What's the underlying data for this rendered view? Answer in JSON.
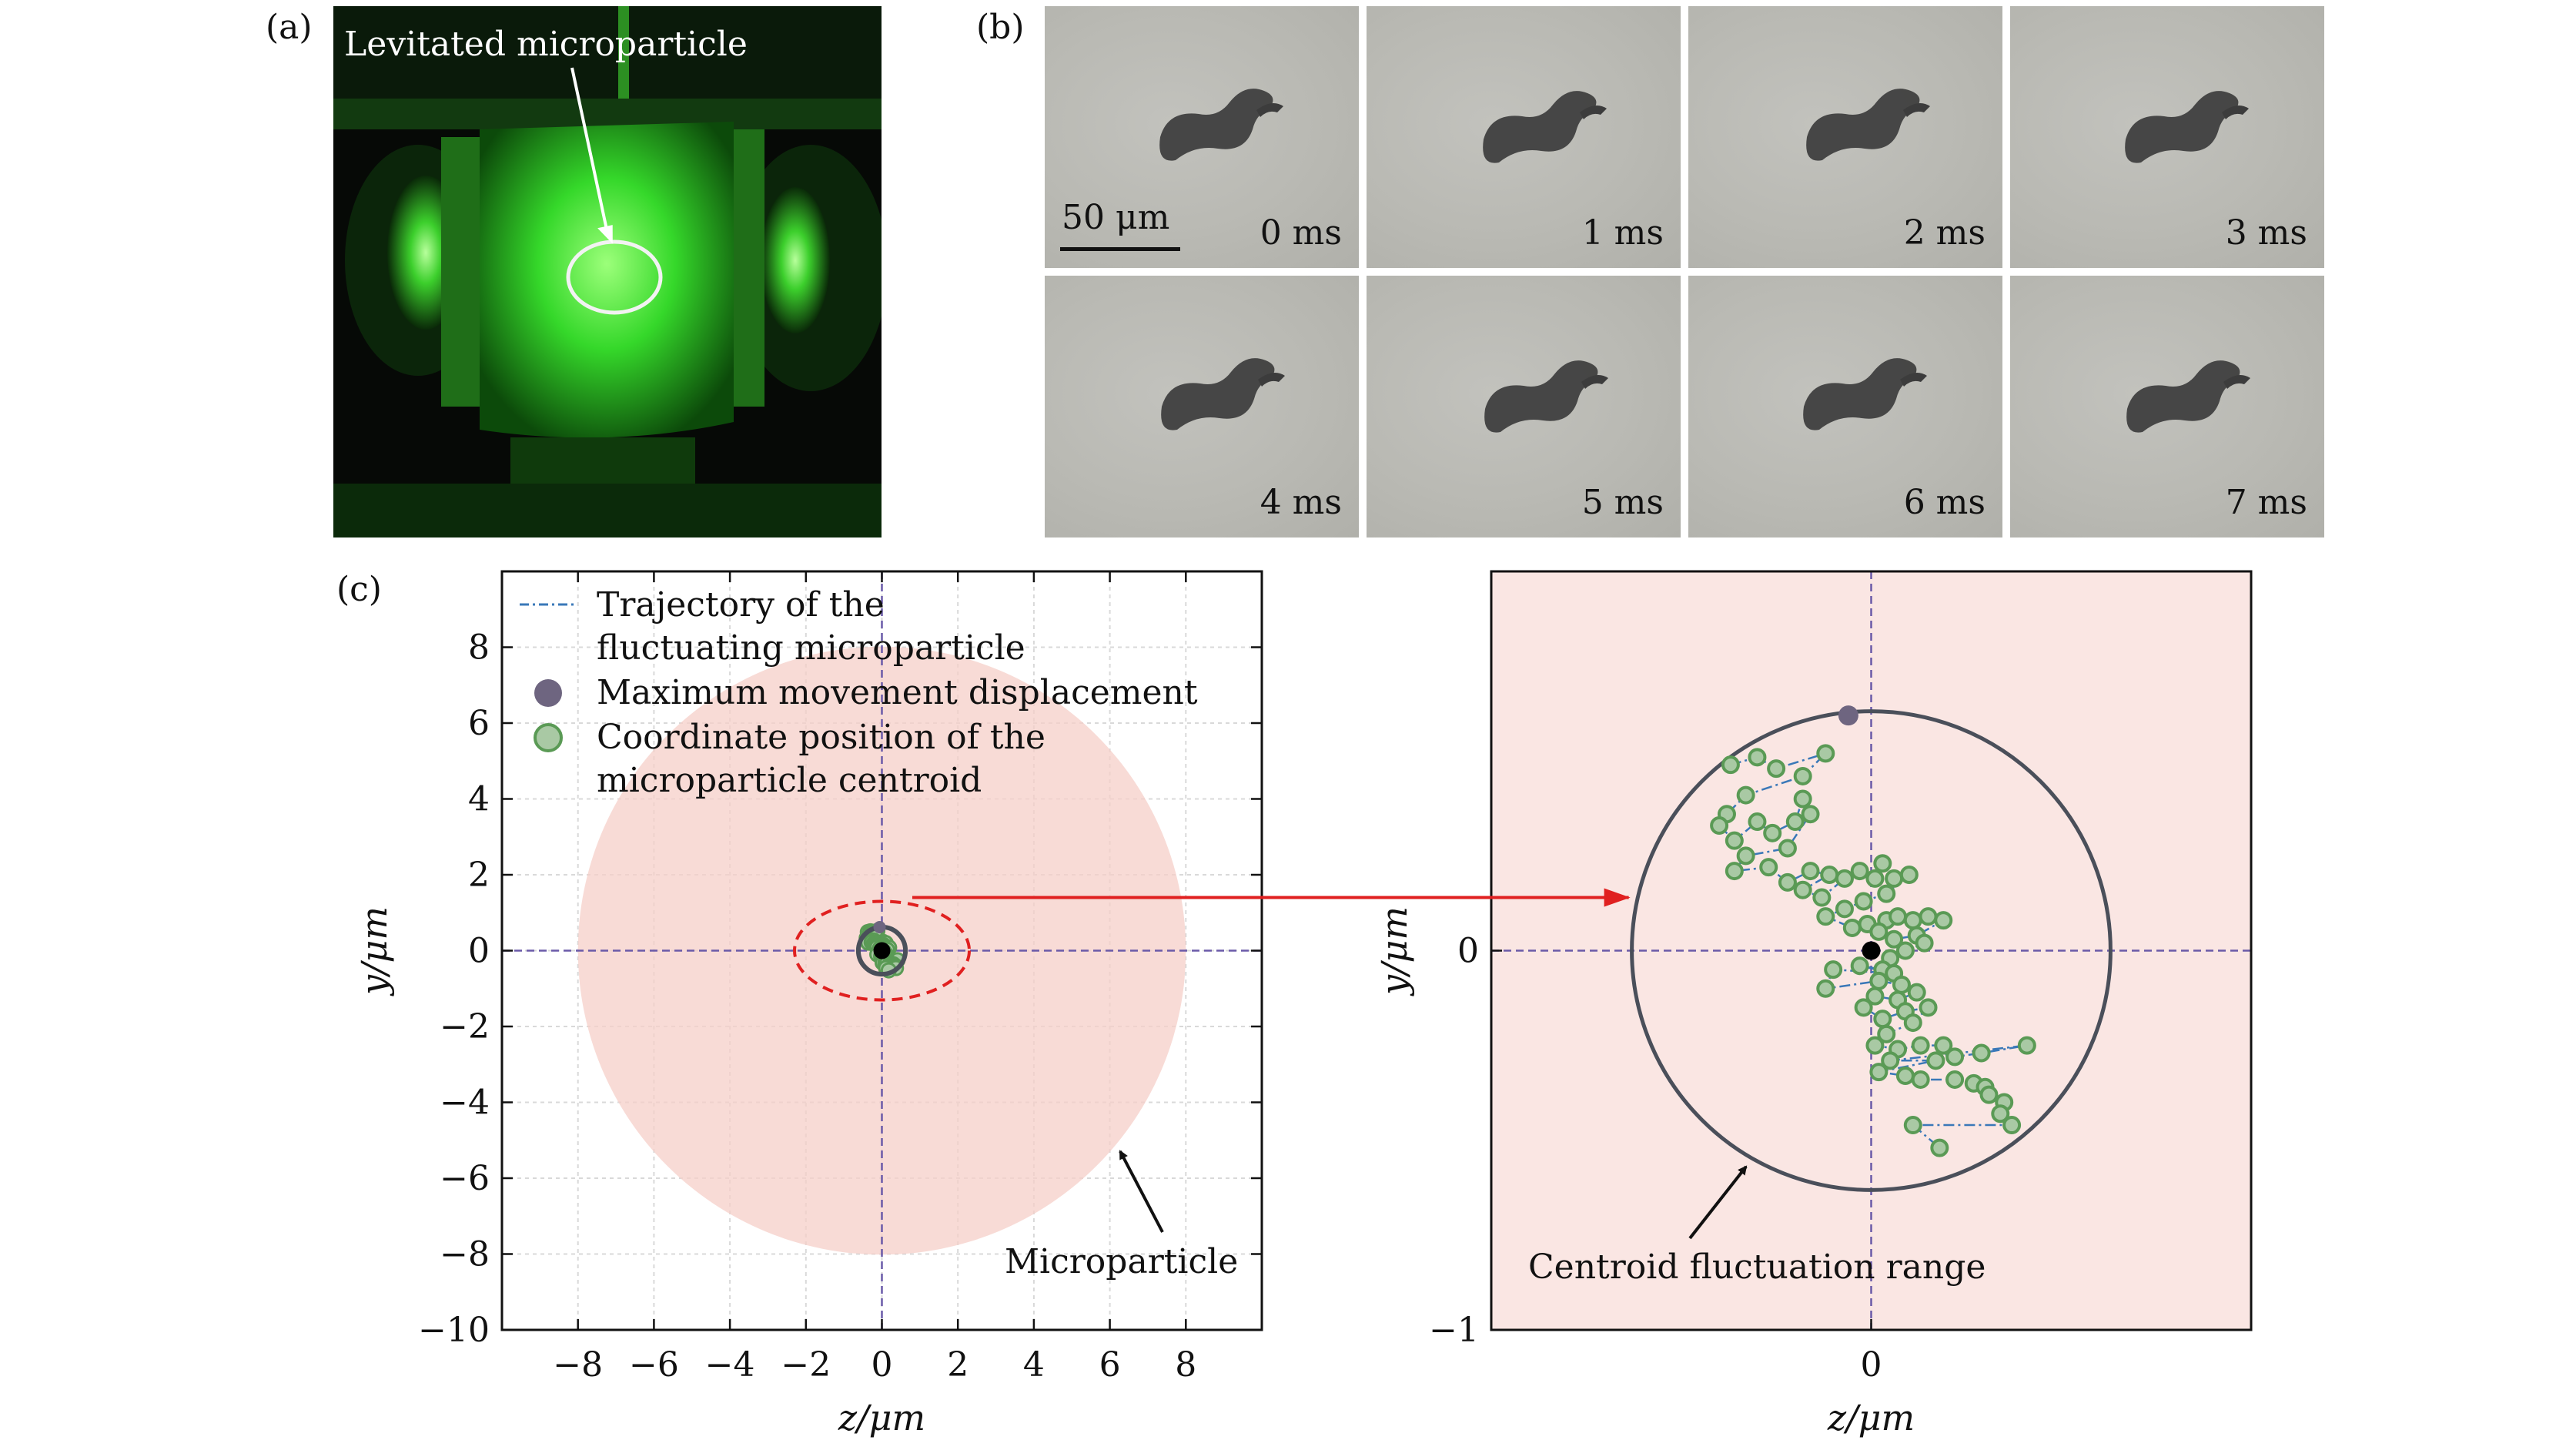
{
  "panel_labels": {
    "a": "(a)",
    "b": "(b)",
    "c": "(c)"
  },
  "panel_a": {
    "annotation": "Levitated microparticle"
  },
  "panel_b": {
    "scale_bar_label": "50 μm",
    "frames": [
      "0 ms",
      "1 ms",
      "2 ms",
      "3 ms",
      "4 ms",
      "5 ms",
      "6 ms",
      "7 ms"
    ]
  },
  "colors": {
    "particle_fill": "#f6cfc8",
    "zoom_background": "#fae6e3",
    "trajectory": "#3a78b8",
    "centroid_fill": "#a9c9a4",
    "centroid_edge": "#5a9a55",
    "max_point": "#6e6580",
    "range_circle": "#4a4f5a",
    "crosshair": "#6a5aa8",
    "zoom_ellipse": "#e02020",
    "arrow_red": "#e02020"
  },
  "legend": {
    "trajectory_line1": "Trajectory of the",
    "trajectory_line2": "fluctuating microparticle",
    "max_label": "Maximum movement displacement",
    "coord_line1": "Coordinate position of the",
    "coord_line2": "microparticle centroid"
  },
  "annotations": {
    "microparticle": "Microparticle",
    "range": "Centroid fluctuation range"
  },
  "chart_data": [
    {
      "type": "scatter",
      "xlabel": "z/μm",
      "ylabel": "y/μm",
      "xlim": [
        -10,
        10
      ],
      "ylim": [
        -10,
        10
      ],
      "xticks": [
        -8,
        -6,
        -4,
        -2,
        0,
        2,
        4,
        6,
        8
      ],
      "xtick_labels": [
        "−8",
        "−6",
        "−4",
        "−2",
        "0",
        "2",
        "4",
        "6",
        "8"
      ],
      "yticks": [
        -10,
        -8,
        -6,
        -4,
        -2,
        0,
        2,
        4,
        6,
        8
      ],
      "ytick_labels": [
        "−10",
        "−8",
        "−6",
        "−4",
        "−2",
        "0",
        "2",
        "4",
        "6",
        "8"
      ],
      "grid": true,
      "legend_position": "top-left",
      "microparticle_circle": {
        "center": [
          0,
          0
        ],
        "radius": 8.0
      },
      "zoom_ellipse": {
        "center": [
          0,
          0
        ],
        "semi_axes": [
          2.3,
          1.3
        ]
      },
      "centroid_range_radius": 0.62
    },
    {
      "type": "scatter",
      "xlabel": "z/μm",
      "ylabel": "y/μm",
      "xlim": [
        -1,
        1
      ],
      "ylim": [
        -1,
        1
      ],
      "xticks": [
        0
      ],
      "xtick_labels": [
        "0"
      ],
      "yticks": [
        -1,
        0
      ],
      "ytick_labels": [
        "−1",
        "0"
      ],
      "grid": false,
      "range_circle": {
        "center": [
          0,
          0
        ],
        "radius": 0.63
      },
      "max_displacement_point": [
        -0.06,
        0.62
      ],
      "center_point": [
        0,
        0
      ],
      "centroid_positions": [
        [
          -0.37,
          0.49
        ],
        [
          -0.3,
          0.51
        ],
        [
          -0.25,
          0.48
        ],
        [
          -0.12,
          0.52
        ],
        [
          -0.18,
          0.46
        ],
        [
          -0.33,
          0.41
        ],
        [
          -0.38,
          0.36
        ],
        [
          -0.4,
          0.33
        ],
        [
          -0.36,
          0.29
        ],
        [
          -0.3,
          0.34
        ],
        [
          -0.26,
          0.31
        ],
        [
          -0.2,
          0.34
        ],
        [
          -0.18,
          0.4
        ],
        [
          -0.16,
          0.36
        ],
        [
          -0.22,
          0.27
        ],
        [
          -0.33,
          0.25
        ],
        [
          -0.36,
          0.21
        ],
        [
          -0.27,
          0.22
        ],
        [
          -0.22,
          0.18
        ],
        [
          -0.16,
          0.21
        ],
        [
          -0.11,
          0.2
        ],
        [
          -0.18,
          0.16
        ],
        [
          -0.13,
          0.14
        ],
        [
          -0.07,
          0.19
        ],
        [
          -0.03,
          0.21
        ],
        [
          0.01,
          0.19
        ],
        [
          0.03,
          0.23
        ],
        [
          0.06,
          0.19
        ],
        [
          0.1,
          0.2
        ],
        [
          0.04,
          0.15
        ],
        [
          -0.02,
          0.13
        ],
        [
          -0.07,
          0.11
        ],
        [
          -0.12,
          0.09
        ],
        [
          -0.05,
          0.06
        ],
        [
          -0.01,
          0.07
        ],
        [
          0.04,
          0.08
        ],
        [
          0.07,
          0.09
        ],
        [
          0.11,
          0.08
        ],
        [
          0.15,
          0.09
        ],
        [
          0.19,
          0.08
        ],
        [
          0.12,
          0.04
        ],
        [
          0.06,
          0.03
        ],
        [
          0.02,
          0.05
        ],
        [
          0.09,
          0.0
        ],
        [
          0.14,
          0.02
        ],
        [
          0.05,
          -0.02
        ],
        [
          0.03,
          -0.05
        ],
        [
          -0.03,
          -0.04
        ],
        [
          0.06,
          -0.06
        ],
        [
          -0.1,
          -0.05
        ],
        [
          -0.12,
          -0.1
        ],
        [
          0.02,
          -0.08
        ],
        [
          0.08,
          -0.09
        ],
        [
          0.12,
          -0.11
        ],
        [
          0.07,
          -0.13
        ],
        [
          0.01,
          -0.12
        ],
        [
          -0.02,
          -0.15
        ],
        [
          0.03,
          -0.18
        ],
        [
          0.09,
          -0.16
        ],
        [
          0.15,
          -0.15
        ],
        [
          0.11,
          -0.19
        ],
        [
          0.04,
          -0.22
        ],
        [
          0.01,
          -0.25
        ],
        [
          0.07,
          -0.26
        ],
        [
          0.13,
          -0.25
        ],
        [
          0.19,
          -0.25
        ],
        [
          0.22,
          -0.28
        ],
        [
          0.29,
          -0.27
        ],
        [
          0.41,
          -0.25
        ],
        [
          0.05,
          -0.29
        ],
        [
          0.17,
          -0.29
        ],
        [
          0.02,
          -0.32
        ],
        [
          0.09,
          -0.33
        ],
        [
          0.13,
          -0.34
        ],
        [
          0.22,
          -0.34
        ],
        [
          0.27,
          -0.35
        ],
        [
          0.3,
          -0.36
        ],
        [
          0.31,
          -0.38
        ],
        [
          0.35,
          -0.4
        ],
        [
          0.34,
          -0.43
        ],
        [
          0.37,
          -0.46
        ],
        [
          0.11,
          -0.46
        ],
        [
          0.18,
          -0.52
        ]
      ]
    }
  ]
}
